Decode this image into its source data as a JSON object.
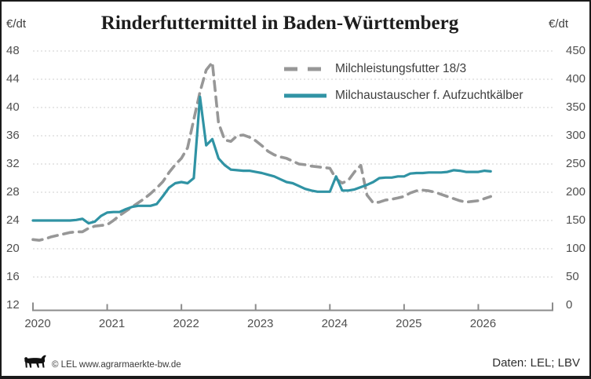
{
  "title": "Rinderfuttermittel in Baden-Württemberg",
  "left_axis_unit": "€/dt",
  "right_axis_unit": "€/dt",
  "legend": {
    "items": [
      {
        "label": "Milchleistungsfutter 18/3",
        "color": "#979797",
        "style": "dashed"
      },
      {
        "label": "Milchaustauscher f. Aufzuchtkälber",
        "color": "#3093A4",
        "style": "solid"
      }
    ]
  },
  "footer": {
    "copyright": "© LEL www.agrarmaerkte-bw.de",
    "source": "Daten: LEL; LBV",
    "logo": "lel-lion"
  },
  "colors": {
    "grid": "#cfcfcf",
    "axis": "#8c8c8c",
    "tick_text": "#4f4f4f",
    "series_dashed": "#979797",
    "series_solid": "#3093A4"
  },
  "chart_data": {
    "type": "line",
    "title": "Rinderfuttermittel in Baden-Württemberg",
    "x_unit": "year",
    "x_range": [
      2020,
      2027
    ],
    "x_ticks": [
      2020,
      2021,
      2022,
      2023,
      2024,
      2025,
      2026
    ],
    "left_axis": {
      "label": "€/dt",
      "range": [
        12,
        48
      ],
      "ticks": [
        12,
        16,
        20,
        24,
        28,
        32,
        36,
        40,
        44,
        48
      ]
    },
    "right_axis": {
      "label": "€/dt",
      "range": [
        0,
        450
      ],
      "ticks": [
        0,
        50,
        100,
        150,
        200,
        250,
        300,
        350,
        400,
        450
      ]
    },
    "grid": "horizontal-dotted",
    "legend_position": "top-right-inside",
    "sampling": "monthly",
    "start": "2020-01",
    "end": "2026-03",
    "series": [
      {
        "name": "Milchleistungsfutter 18/3",
        "axis": "left",
        "style": "dashed",
        "color": "#979797",
        "values": [
          21.3,
          21.2,
          21.4,
          21.7,
          21.9,
          22.1,
          22.3,
          22.4,
          22.4,
          22.9,
          23.2,
          23.3,
          23.4,
          24.0,
          24.7,
          25.3,
          25.9,
          26.5,
          27.1,
          27.8,
          28.6,
          29.5,
          30.8,
          31.9,
          32.8,
          34.3,
          38.3,
          42.2,
          45.3,
          46.4,
          37.8,
          35.4,
          35.2,
          36.0,
          36.1,
          35.8,
          35.3,
          34.6,
          33.8,
          33.3,
          33.0,
          32.8,
          32.4,
          32.0,
          31.9,
          31.7,
          31.6,
          31.5,
          31.4,
          29.9,
          29.3,
          29.7,
          30.9,
          31.8,
          27.6,
          26.5,
          26.6,
          26.9,
          27.0,
          27.2,
          27.4,
          27.9,
          28.2,
          28.3,
          28.2,
          28.0,
          27.7,
          27.4,
          27.1,
          26.8,
          26.6,
          26.7,
          26.8,
          27.1,
          27.4
        ]
      },
      {
        "name": "Milchaustauscher f. Aufzuchtkälber",
        "axis": "right",
        "style": "solid",
        "color": "#3093A4",
        "values": [
          150,
          150,
          150,
          150,
          150,
          150,
          150,
          151,
          153,
          145,
          148,
          158,
          164,
          165,
          165,
          170,
          174,
          176,
          176,
          176,
          179,
          193,
          208,
          216,
          218,
          216,
          225,
          369,
          283,
          294,
          260,
          248,
          240,
          239,
          238,
          238,
          236,
          234,
          231,
          228,
          223,
          218,
          216,
          211,
          206,
          203,
          201,
          201,
          201,
          228,
          203,
          203,
          205,
          209,
          213,
          218,
          225,
          226,
          226,
          228,
          228,
          233,
          234,
          234,
          235,
          235,
          235,
          236,
          239,
          238,
          236,
          236,
          236,
          238,
          237
        ]
      }
    ]
  }
}
